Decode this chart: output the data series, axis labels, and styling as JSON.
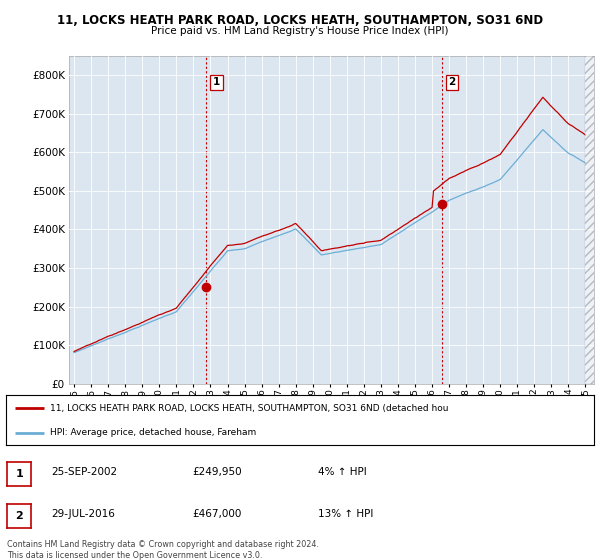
{
  "title": "11, LOCKS HEATH PARK ROAD, LOCKS HEATH, SOUTHAMPTON, SO31 6ND",
  "subtitle": "Price paid vs. HM Land Registry's House Price Index (HPI)",
  "legend_line1": "11, LOCKS HEATH PARK ROAD, LOCKS HEATH, SOUTHAMPTON, SO31 6ND (detached hou",
  "legend_line2": "HPI: Average price, detached house, Fareham",
  "footer": "Contains HM Land Registry data © Crown copyright and database right 2024.\nThis data is licensed under the Open Government Licence v3.0.",
  "sale1_date": "25-SEP-2002",
  "sale1_price": "£249,950",
  "sale1_hpi": "4% ↑ HPI",
  "sale2_date": "29-JUL-2016",
  "sale2_price": "£467,000",
  "sale2_hpi": "13% ↑ HPI",
  "sale1_x": 2002.73,
  "sale1_y": 249950,
  "sale2_x": 2016.57,
  "sale2_y": 467000,
  "hpi_color": "#6baed6",
  "price_color": "#c00000",
  "vline_color": "#c00000",
  "background_color": "#ffffff",
  "plot_bg_color": "#dce6f1",
  "ylim_min": 0,
  "ylim_max": 850000,
  "xlim_min": 1994.7,
  "xlim_max": 2025.5,
  "yticks": [
    0,
    100000,
    200000,
    300000,
    400000,
    500000,
    600000,
    700000,
    800000
  ],
  "xticks": [
    1995,
    1996,
    1997,
    1998,
    1999,
    2000,
    2001,
    2002,
    2003,
    2004,
    2005,
    2006,
    2007,
    2008,
    2009,
    2010,
    2011,
    2012,
    2013,
    2014,
    2015,
    2016,
    2017,
    2018,
    2019,
    2020,
    2021,
    2022,
    2023,
    2024,
    2025
  ]
}
